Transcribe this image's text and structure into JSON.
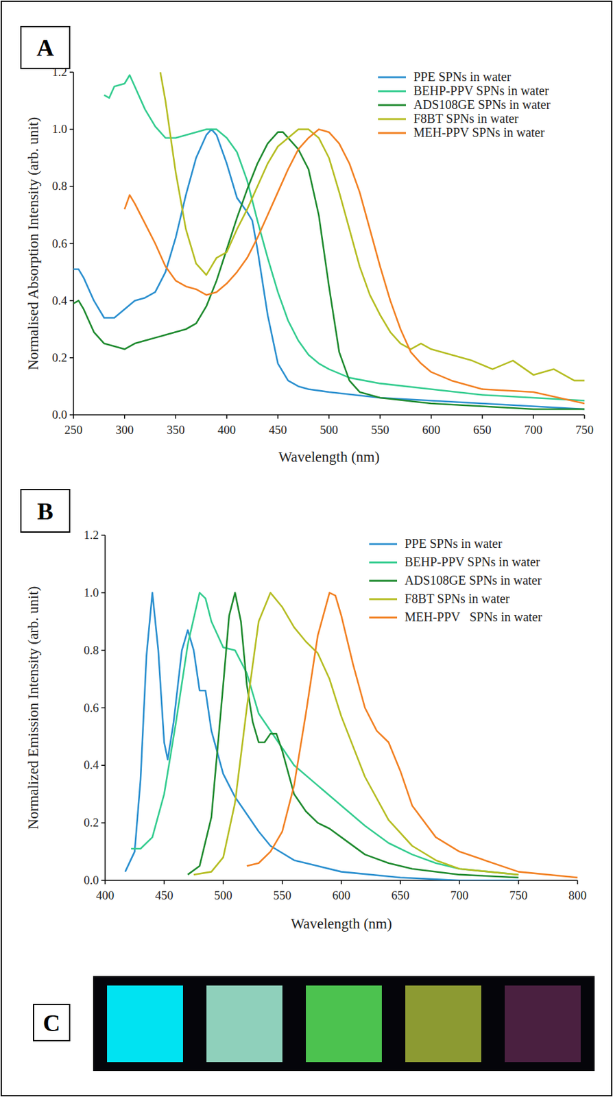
{
  "chart_data": [
    {
      "type": "line",
      "panel": "A",
      "x_label": "Wavelength (nm)",
      "y_label": "Normalised Absorption Intensity (arb. unit)",
      "xlim": [
        250,
        750
      ],
      "xticks": [
        250,
        300,
        350,
        400,
        450,
        500,
        550,
        600,
        650,
        700,
        750
      ],
      "ylim": [
        0,
        1.2
      ],
      "yticks": [
        {
          "value": 0,
          "label": "0.0"
        },
        {
          "value": 0.2,
          "label": "0.2"
        },
        {
          "value": 0.4,
          "label": "0.4"
        },
        {
          "value": 0.6,
          "label": "0.6"
        },
        {
          "value": 0.8,
          "label": "0.8"
        },
        {
          "value": 1.0,
          "label": "1.0"
        },
        {
          "value": 1.2,
          "label": "1.2"
        }
      ],
      "grid": false,
      "legend": "top-right",
      "series": [
        {
          "name": "PPE SPNs in water",
          "color": "#2a8fcf",
          "x": [
            250,
            255,
            260,
            270,
            280,
            290,
            300,
            310,
            320,
            330,
            340,
            350,
            360,
            370,
            380,
            385,
            390,
            400,
            410,
            420,
            425,
            430,
            440,
            450,
            460,
            470,
            480,
            500,
            550,
            600,
            650,
            700,
            750
          ],
          "values": [
            0.51,
            0.51,
            0.48,
            0.4,
            0.34,
            0.34,
            0.37,
            0.4,
            0.41,
            0.43,
            0.5,
            0.62,
            0.77,
            0.9,
            0.98,
            1.0,
            0.98,
            0.88,
            0.76,
            0.71,
            0.68,
            0.58,
            0.35,
            0.18,
            0.12,
            0.1,
            0.09,
            0.08,
            0.06,
            0.05,
            0.04,
            0.03,
            0.02
          ]
        },
        {
          "name": "BEHP-PPV SPNs in water",
          "color": "#33cc8f",
          "x": [
            280,
            285,
            290,
            300,
            305,
            310,
            320,
            330,
            340,
            350,
            360,
            370,
            380,
            390,
            400,
            410,
            420,
            430,
            440,
            450,
            460,
            470,
            480,
            490,
            500,
            520,
            550,
            600,
            650,
            700,
            750
          ],
          "values": [
            1.12,
            1.11,
            1.15,
            1.16,
            1.19,
            1.15,
            1.07,
            1.01,
            0.97,
            0.97,
            0.98,
            0.99,
            1.0,
            1.0,
            0.97,
            0.92,
            0.82,
            0.68,
            0.55,
            0.43,
            0.33,
            0.26,
            0.21,
            0.18,
            0.16,
            0.13,
            0.11,
            0.09,
            0.07,
            0.06,
            0.05
          ]
        },
        {
          "name": "ADS108GE SPNs in water",
          "color": "#1e8a2e",
          "x": [
            250,
            255,
            260,
            270,
            280,
            290,
            300,
            310,
            320,
            340,
            360,
            370,
            380,
            390,
            400,
            410,
            420,
            430,
            440,
            450,
            455,
            460,
            470,
            480,
            490,
            500,
            510,
            520,
            530,
            550,
            600,
            650,
            700,
            750
          ],
          "values": [
            0.39,
            0.4,
            0.37,
            0.29,
            0.25,
            0.24,
            0.23,
            0.25,
            0.26,
            0.28,
            0.3,
            0.32,
            0.38,
            0.47,
            0.58,
            0.69,
            0.79,
            0.88,
            0.95,
            0.99,
            0.99,
            0.97,
            0.93,
            0.86,
            0.7,
            0.45,
            0.22,
            0.12,
            0.08,
            0.06,
            0.04,
            0.03,
            0.02,
            0.02
          ]
        },
        {
          "name": "F8BT SPNs in water",
          "color": "#b5bd22",
          "x": [
            335,
            340,
            350,
            360,
            370,
            380,
            385,
            390,
            400,
            410,
            420,
            430,
            440,
            450,
            460,
            470,
            480,
            490,
            500,
            510,
            520,
            530,
            540,
            550,
            560,
            570,
            580,
            590,
            600,
            620,
            640,
            660,
            680,
            700,
            720,
            740,
            750
          ],
          "values": [
            1.2,
            1.1,
            0.85,
            0.65,
            0.53,
            0.49,
            0.52,
            0.55,
            0.57,
            0.65,
            0.72,
            0.8,
            0.88,
            0.94,
            0.97,
            1.0,
            1.0,
            0.97,
            0.9,
            0.78,
            0.65,
            0.52,
            0.42,
            0.35,
            0.29,
            0.25,
            0.23,
            0.25,
            0.23,
            0.21,
            0.19,
            0.16,
            0.19,
            0.14,
            0.16,
            0.12,
            0.12
          ]
        },
        {
          "name": "MEH-PPV SPNs in water",
          "color": "#f28022",
          "x": [
            300,
            305,
            310,
            320,
            330,
            340,
            350,
            360,
            370,
            380,
            390,
            400,
            410,
            420,
            430,
            440,
            450,
            460,
            470,
            480,
            490,
            500,
            510,
            520,
            530,
            540,
            550,
            560,
            570,
            580,
            590,
            600,
            620,
            650,
            700,
            750
          ],
          "values": [
            0.72,
            0.77,
            0.74,
            0.67,
            0.6,
            0.52,
            0.47,
            0.45,
            0.44,
            0.42,
            0.43,
            0.46,
            0.5,
            0.55,
            0.62,
            0.7,
            0.78,
            0.86,
            0.93,
            0.97,
            1.0,
            0.99,
            0.95,
            0.88,
            0.78,
            0.65,
            0.52,
            0.4,
            0.3,
            0.22,
            0.18,
            0.15,
            0.12,
            0.09,
            0.08,
            0.04
          ]
        }
      ]
    },
    {
      "type": "line",
      "panel": "B",
      "x_label": "Wavelength (nm)",
      "y_label": "Normalized Emission Intensity (arb. unit)",
      "xlim": [
        400,
        800
      ],
      "xticks": [
        400,
        450,
        500,
        550,
        600,
        650,
        700,
        750,
        800
      ],
      "ylim": [
        0,
        1.2
      ],
      "yticks": [
        {
          "value": 0,
          "label": "0.0"
        },
        {
          "value": 0.2,
          "label": "0.2"
        },
        {
          "value": 0.4,
          "label": "0.4"
        },
        {
          "value": 0.6,
          "label": "0.6"
        },
        {
          "value": 0.8,
          "label": "0.8"
        },
        {
          "value": 1.0,
          "label": "1.0"
        },
        {
          "value": 1.2,
          "label": "1.2"
        }
      ],
      "grid": false,
      "legend": "top-right",
      "series": [
        {
          "name": "PPE SPNs in water",
          "color": "#2a8fcf",
          "x": [
            417,
            425,
            430,
            435,
            440,
            445,
            450,
            453,
            458,
            465,
            470,
            475,
            480,
            485,
            490,
            500,
            510,
            520,
            530,
            540,
            560,
            580,
            600,
            650,
            700,
            750
          ],
          "values": [
            0.03,
            0.1,
            0.35,
            0.78,
            1.0,
            0.8,
            0.48,
            0.42,
            0.55,
            0.8,
            0.87,
            0.8,
            0.66,
            0.66,
            0.52,
            0.37,
            0.29,
            0.23,
            0.17,
            0.12,
            0.07,
            0.05,
            0.03,
            0.01,
            0.0,
            0.0
          ]
        },
        {
          "name": "BEHP-PPV SPNs in water",
          "color": "#33cc8f",
          "x": [
            422,
            430,
            440,
            450,
            460,
            470,
            480,
            485,
            490,
            500,
            510,
            520,
            530,
            540,
            550,
            560,
            580,
            600,
            620,
            640,
            660,
            680,
            700,
            750
          ],
          "values": [
            0.11,
            0.11,
            0.15,
            0.3,
            0.55,
            0.82,
            1.0,
            0.98,
            0.9,
            0.81,
            0.8,
            0.72,
            0.58,
            0.52,
            0.46,
            0.4,
            0.33,
            0.26,
            0.19,
            0.13,
            0.09,
            0.06,
            0.04,
            0.02
          ]
        },
        {
          "name": "ADS108GE SPNs in water",
          "color": "#1e8a2e",
          "x": [
            470,
            480,
            490,
            500,
            505,
            510,
            515,
            520,
            525,
            530,
            535,
            540,
            545,
            550,
            560,
            570,
            580,
            590,
            600,
            620,
            640,
            660,
            700,
            750
          ],
          "values": [
            0.02,
            0.05,
            0.22,
            0.68,
            0.92,
            1.0,
            0.9,
            0.68,
            0.55,
            0.48,
            0.48,
            0.51,
            0.51,
            0.45,
            0.3,
            0.24,
            0.2,
            0.18,
            0.15,
            0.09,
            0.06,
            0.04,
            0.02,
            0.01
          ]
        },
        {
          "name": "F8BT SPNs in water",
          "color": "#b5bd22",
          "x": [
            475,
            490,
            500,
            510,
            520,
            530,
            540,
            550,
            560,
            570,
            580,
            590,
            600,
            620,
            640,
            660,
            680,
            700,
            750
          ],
          "values": [
            0.02,
            0.03,
            0.08,
            0.27,
            0.6,
            0.9,
            1.0,
            0.95,
            0.88,
            0.83,
            0.79,
            0.7,
            0.57,
            0.36,
            0.21,
            0.12,
            0.07,
            0.04,
            0.02
          ]
        },
        {
          "name": "MEH-PPV   SPNs in water",
          "color": "#f28022",
          "x": [
            520,
            530,
            540,
            550,
            560,
            570,
            580,
            590,
            595,
            600,
            610,
            620,
            630,
            640,
            650,
            660,
            680,
            700,
            750,
            800
          ],
          "values": [
            0.05,
            0.06,
            0.1,
            0.17,
            0.33,
            0.58,
            0.85,
            1.0,
            0.99,
            0.92,
            0.75,
            0.6,
            0.52,
            0.48,
            0.38,
            0.26,
            0.15,
            0.1,
            0.03,
            0.01
          ]
        }
      ]
    }
  ],
  "image_panel": {
    "panel": "C",
    "colors": [
      "#00e3f2",
      "#8fd0bb",
      "#4cc24f",
      "#8c9a32",
      "#4a2040"
    ]
  }
}
